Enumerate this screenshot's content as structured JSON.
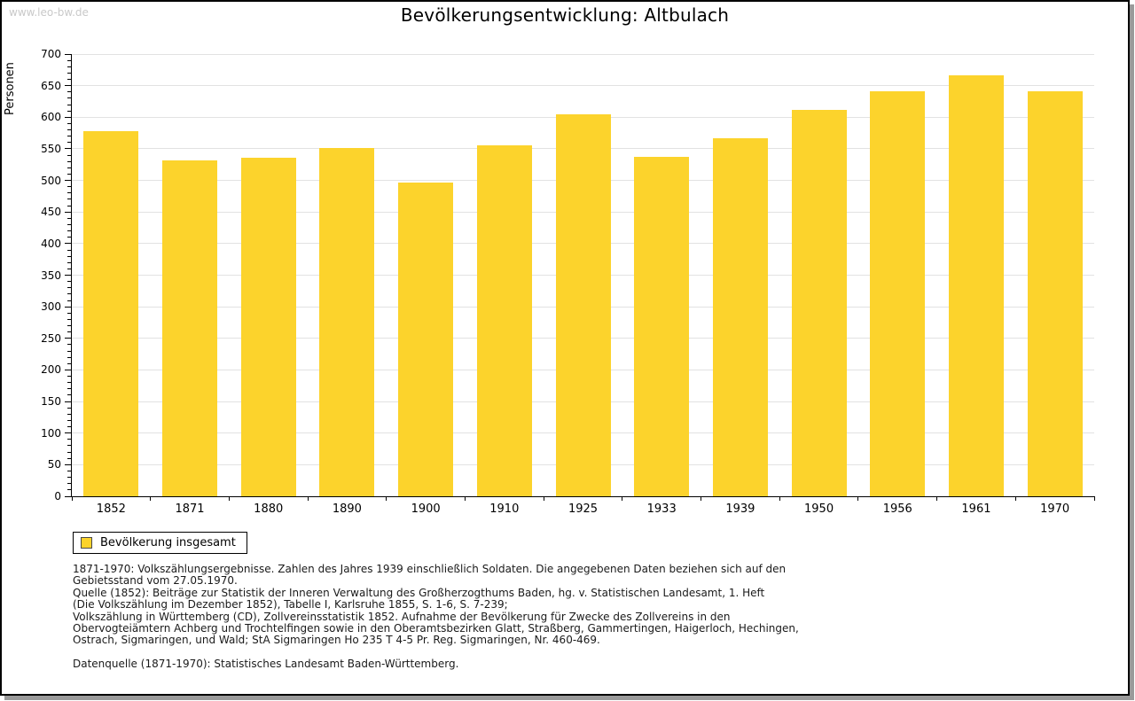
{
  "page": {
    "watermark": "www.leo-bw.de",
    "title": "Bevölkerungsentwicklung: Altbulach"
  },
  "chart_data": {
    "type": "bar",
    "title": "Bevölkerungsentwicklung: Altbulach",
    "categories": [
      "1852",
      "1871",
      "1880",
      "1890",
      "1900",
      "1910",
      "1925",
      "1933",
      "1939",
      "1950",
      "1956",
      "1961",
      "1970"
    ],
    "values": [
      578,
      531,
      536,
      552,
      497,
      555,
      604,
      537,
      567,
      611,
      641,
      666,
      641
    ],
    "xlabel": "",
    "ylabel": "Personen",
    "ylim": [
      0,
      700
    ],
    "ytick_step": 50,
    "yminor_step": 10,
    "grid": true,
    "legend_position": "bottom-left",
    "bar_color": "#fcd32c",
    "grid_color": "#e2e2e2"
  },
  "legend": {
    "items": [
      {
        "label": "Bevölkerung insgesamt",
        "color": "#fcd32c"
      }
    ]
  },
  "footnotes": {
    "lines": [
      "1871-1970: Volkszählungsergebnisse. Zahlen des Jahres 1939 einschließlich Soldaten. Die angegebenen Daten beziehen sich auf den",
      "Gebietsstand vom 27.05.1970.",
      "Quelle (1852): Beiträge zur Statistik der Inneren Verwaltung des Großherzogthums Baden, hg. v. Statistischen Landesamt, 1. Heft",
      "(Die Volkszählung im Dezember 1852), Tabelle I, Karlsruhe 1855, S. 1-6, S. 7-239;",
      "Volkszählung in Württemberg (CD), Zollvereinsstatistik 1852. Aufnahme der Bevölkerung für Zwecke des Zollvereins in den",
      "Obervogteiämtern Achberg und Trochtelfingen sowie in den Oberamtsbezirken Glatt, Straßberg, Gammertingen, Haigerloch, Hechingen,",
      "Ostrach, Sigmaringen, und Wald; StA Sigmaringen Ho 235 T 4-5 Pr. Reg. Sigmaringen, Nr. 460-469.",
      "",
      "Datenquelle (1871-1970): Statistisches Landesamt Baden-Württemberg."
    ]
  }
}
